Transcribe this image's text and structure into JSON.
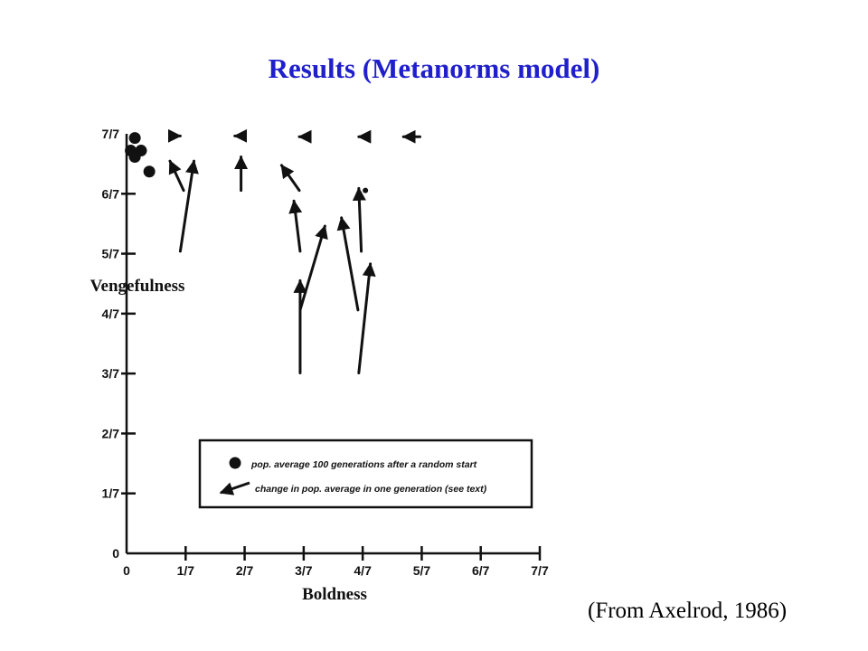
{
  "slide": {
    "title": "Results (Metanorms model)",
    "source": "(From Axelrod, 1986)"
  },
  "colors": {
    "title": "#1f1fcc",
    "ink": "#111111",
    "background": "#ffffff"
  },
  "chart_data": {
    "type": "scatter",
    "xlabel": "Boldness",
    "ylabel": "Vengefulness",
    "xlim": [
      0,
      1
    ],
    "ylim": [
      0,
      1
    ],
    "x_ticks": [
      {
        "value": 0,
        "label": "0"
      },
      {
        "value": 0.1429,
        "label": "1/7"
      },
      {
        "value": 0.2857,
        "label": "2/7"
      },
      {
        "value": 0.4286,
        "label": "3/7"
      },
      {
        "value": 0.5714,
        "label": "4/7"
      },
      {
        "value": 0.7143,
        "label": "5/7"
      },
      {
        "value": 0.8571,
        "label": "6/7"
      },
      {
        "value": 1,
        "label": "7/7"
      }
    ],
    "y_ticks": [
      {
        "value": 0,
        "label": "0"
      },
      {
        "value": 0.1429,
        "label": "1/7"
      },
      {
        "value": 0.2857,
        "label": "2/7"
      },
      {
        "value": 0.4286,
        "label": "3/7"
      },
      {
        "value": 0.5714,
        "label": "4/7"
      },
      {
        "value": 0.7143,
        "label": "5/7"
      },
      {
        "value": 0.8571,
        "label": "6/7"
      },
      {
        "value": 1,
        "label": "7/7"
      }
    ],
    "population_averages": [
      {
        "x": 0.02,
        "y": 0.99
      },
      {
        "x": 0.01,
        "y": 0.96
      },
      {
        "x": 0.035,
        "y": 0.96
      },
      {
        "x": 0.02,
        "y": 0.945
      },
      {
        "x": 0.055,
        "y": 0.91
      }
    ],
    "generation_changes": [
      {
        "from": [
          0.138,
          0.865
        ],
        "to": [
          0.105,
          0.935
        ]
      },
      {
        "from": [
          0.13,
          0.72
        ],
        "to": [
          0.163,
          0.935
        ]
      },
      {
        "from": [
          0.277,
          0.865
        ],
        "to": [
          0.277,
          0.945
        ]
      },
      {
        "from": [
          0.418,
          0.865
        ],
        "to": [
          0.375,
          0.925
        ]
      },
      {
        "from": [
          0.42,
          0.72
        ],
        "to": [
          0.405,
          0.84
        ]
      },
      {
        "from": [
          0.42,
          0.58
        ],
        "to": [
          0.48,
          0.78
        ]
      },
      {
        "from": [
          0.42,
          0.43
        ],
        "to": [
          0.42,
          0.65
        ]
      },
      {
        "from": [
          0.56,
          0.58
        ],
        "to": [
          0.52,
          0.8
        ]
      },
      {
        "from": [
          0.568,
          0.72
        ],
        "to": [
          0.562,
          0.87
        ]
      },
      {
        "from": [
          0.562,
          0.43
        ],
        "to": [
          0.59,
          0.69
        ]
      },
      {
        "from": [
          0.12,
          0.995
        ],
        "to": [
          0.13,
          0.995
        ]
      },
      {
        "from": [
          0.28,
          0.995
        ],
        "to": [
          0.262,
          0.995
        ]
      },
      {
        "from": [
          0.425,
          0.993
        ],
        "to": [
          0.418,
          0.993
        ]
      },
      {
        "from": [
          0.57,
          0.993
        ],
        "to": [
          0.562,
          0.993
        ]
      },
      {
        "from": [
          0.71,
          0.993
        ],
        "to": [
          0.67,
          0.993
        ]
      },
      {
        "from": [
          0.578,
          0.865
        ],
        "to": [
          0.578,
          0.865
        ]
      }
    ],
    "legend": [
      {
        "marker": "dot",
        "text": "pop. average 100 generations after a random start"
      },
      {
        "marker": "arrow",
        "text": "change in pop. average in one generation (see text)"
      }
    ],
    "legend_position": "lower-right",
    "grid": false
  }
}
